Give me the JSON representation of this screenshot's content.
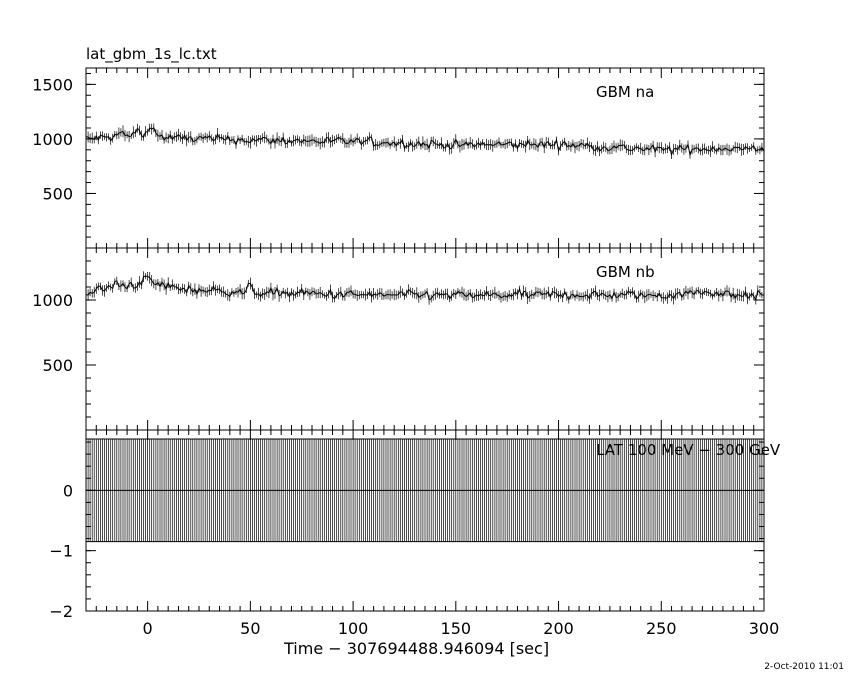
{
  "page": {
    "file_title": "lat_gbm_1s_lc.txt",
    "x_axis_label": "Time − 307694488.946094 [sec]",
    "timestamp": "2-Oct-2010 11:01"
  },
  "chart_data": [
    {
      "type": "line",
      "label": "GBM na",
      "xlim": [
        -30,
        300
      ],
      "ylim": [
        0,
        1650
      ],
      "yticks": [
        500,
        1000,
        1500
      ],
      "grid": false,
      "series": [
        {
          "name": "GBM na",
          "baseline": [
            [
              -30,
              1000
            ],
            [
              0,
              1040
            ],
            [
              10,
              1010
            ],
            [
              50,
              990
            ],
            [
              100,
              975
            ],
            [
              150,
              945
            ],
            [
              200,
              950
            ],
            [
              250,
              900
            ],
            [
              280,
              915
            ],
            [
              300,
              900
            ]
          ],
          "noise": 35,
          "peaks": [
            [
              2,
              110
            ],
            [
              -13,
              40
            ],
            [
              -5,
              45
            ]
          ]
        }
      ]
    },
    {
      "type": "line",
      "label": "GBM nb",
      "xlim": [
        -30,
        300
      ],
      "ylim": [
        0,
        1400
      ],
      "yticks": [
        500,
        1000
      ],
      "grid": false,
      "series": [
        {
          "name": "GBM nb",
          "baseline": [
            [
              -30,
              1060
            ],
            [
              0,
              1140
            ],
            [
              8,
              1110
            ],
            [
              20,
              1080
            ],
            [
              50,
              1060
            ],
            [
              100,
              1040
            ],
            [
              150,
              1035
            ],
            [
              200,
              1040
            ],
            [
              250,
              1035
            ],
            [
              270,
              1060
            ],
            [
              300,
              1030
            ]
          ],
          "noise": 30,
          "peaks": [
            [
              0,
              40
            ],
            [
              50,
              40
            ],
            [
              -16,
              30
            ]
          ]
        }
      ]
    },
    {
      "type": "line",
      "label": "LAT 100 MeV − 300 GeV",
      "xlim": [
        -30,
        300
      ],
      "ylim": [
        -2,
        1
      ],
      "yticks": [
        -2,
        -1,
        0
      ],
      "grid": false,
      "series": [
        {
          "name": "LAT 100 MeV − 300 GeV",
          "value": 0,
          "error_upper": 0.85,
          "error_lower": -0.85
        }
      ]
    }
  ],
  "x_axis": {
    "ticks": [
      0,
      50,
      100,
      150,
      200,
      250,
      300
    ],
    "tick_labels": [
      "0",
      "50",
      "100",
      "150",
      "200",
      "250",
      "300"
    ]
  }
}
